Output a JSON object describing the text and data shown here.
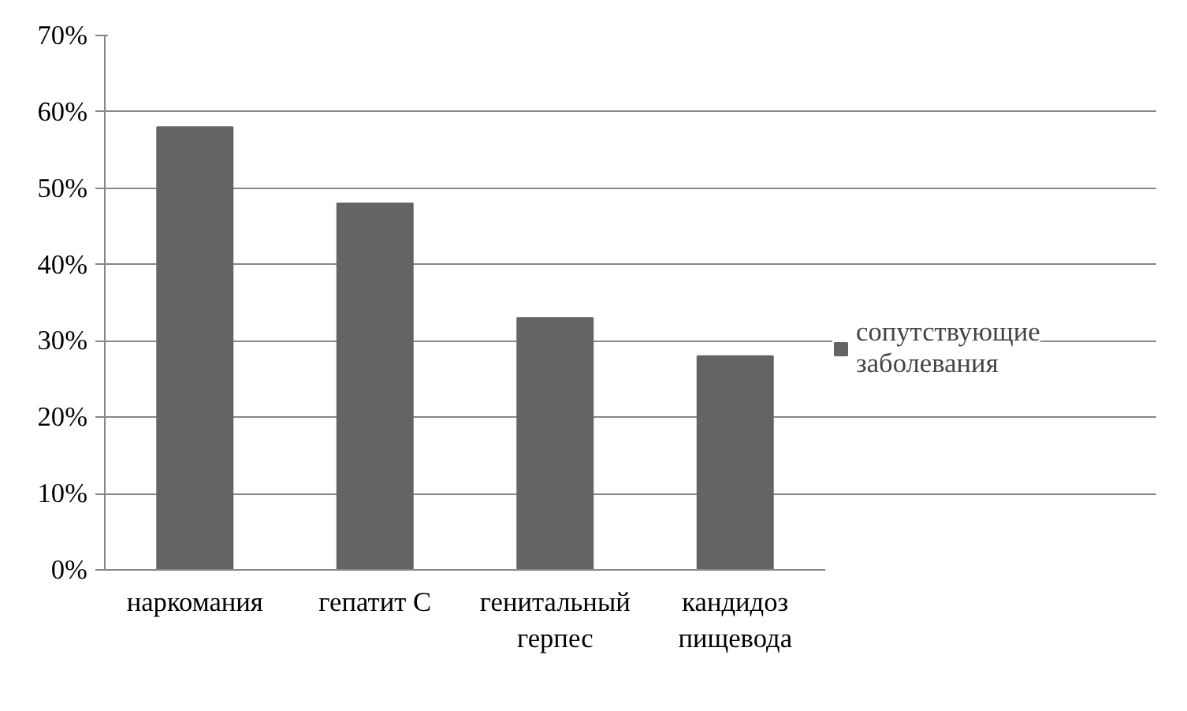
{
  "chart_data": {
    "type": "bar",
    "categories": [
      "наркомания",
      "гепатит С",
      "генитальный\nгерпес",
      "кандидоз\nпищевода"
    ],
    "series": [
      {
        "name": "сопутствующие\nзаболевания",
        "color": "#646464",
        "values": [
          58,
          48,
          33,
          28
        ]
      }
    ],
    "ylim": [
      0,
      70
    ],
    "yticks": [
      {
        "value": 0,
        "label": "0%"
      },
      {
        "value": 10,
        "label": "10%"
      },
      {
        "value": 20,
        "label": "20%"
      },
      {
        "value": 30,
        "label": "30%"
      },
      {
        "value": 40,
        "label": "40%"
      },
      {
        "value": 50,
        "label": "50%"
      },
      {
        "value": 60,
        "label": "60%"
      },
      {
        "value": 70,
        "label": "70%"
      }
    ],
    "grid": "y",
    "legend": "right"
  }
}
